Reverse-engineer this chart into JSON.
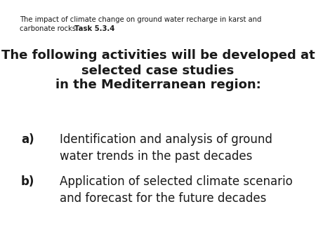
{
  "bg_color": "#ffffff",
  "header_line1": "The impact of climate change on ground water recharge in karst and",
  "header_line2_normal": "carbonate rocks:  ",
  "header_line2_bold": "Task 5.3.4",
  "main_text_line1": "The following activities will be developed at",
  "main_text_line2": "selected case studies",
  "main_text_line3": "in the Mediterranean region:",
  "item_a_label": "a)",
  "item_a_text1": "Identification and analysis of ground",
  "item_a_text2": "water trends in the past decades",
  "item_b_label": "b)",
  "item_b_text1": "Application of selected climate scenario",
  "item_b_text2": "and forecast for the future decades",
  "header_fontsize": 7.2,
  "main_fontsize": 13.0,
  "item_fontsize": 12.0,
  "text_color": "#1a1a1a"
}
